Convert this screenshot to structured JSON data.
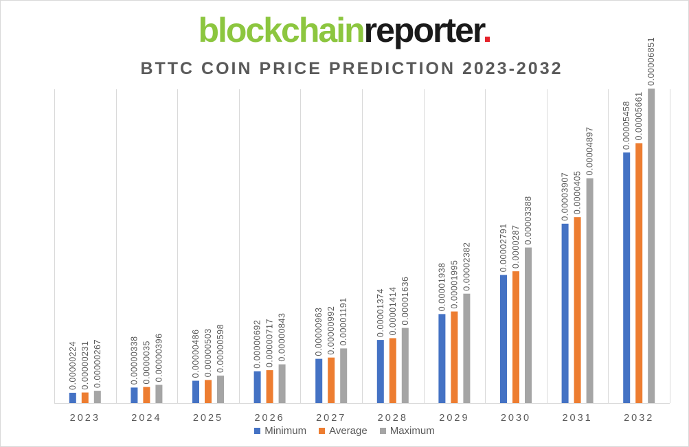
{
  "logo": {
    "part1": "blockchain",
    "part2": "reporter",
    "part3": "."
  },
  "chart_data": {
    "type": "bar",
    "title": "BTTC COIN PRICE PREDICTION 2023-2032",
    "xlabel": "",
    "ylabel": "",
    "categories": [
      "2023",
      "2024",
      "2025",
      "2026",
      "2027",
      "2028",
      "2029",
      "2030",
      "2031",
      "2032"
    ],
    "series": [
      {
        "name": "Minimum",
        "color": "#4472c4",
        "values": [
          2.24e-06,
          3.38e-06,
          4.86e-06,
          6.92e-06,
          9.63e-06,
          1.374e-05,
          1.938e-05,
          2.791e-05,
          3.907e-05,
          5.458e-05
        ],
        "labels": [
          "0.00000224",
          "0.00000338",
          "0.00000486",
          "0.00000692",
          "0.00000963",
          "0.00001374",
          "0.00001938",
          "0.00002791",
          "0.00003907",
          "0.00005458"
        ]
      },
      {
        "name": "Average",
        "color": "#ed7d31",
        "values": [
          2.31e-06,
          3.5e-06,
          5.03e-06,
          7.17e-06,
          9.92e-06,
          1.414e-05,
          1.995e-05,
          2.87e-05,
          4.05e-05,
          5.661e-05
        ],
        "labels": [
          "0.00000231",
          "0.0000035",
          "0.00000503",
          "0.00000717",
          "0.00000992",
          "0.00001414",
          "0.00001995",
          "0.0000287",
          "0.0000405",
          "0.00005661"
        ]
      },
      {
        "name": "Maximum",
        "color": "#a5a5a5",
        "values": [
          2.67e-06,
          3.96e-06,
          5.98e-06,
          8.43e-06,
          1.191e-05,
          1.636e-05,
          2.382e-05,
          3.388e-05,
          4.897e-05,
          6.851e-05
        ],
        "labels": [
          "0.00000267",
          "0.00000396",
          "0.00000598",
          "0.00000843",
          "0.00001191",
          "0.00001636",
          "0.00002382",
          "0.00003388",
          "0.00004897",
          "0.00006851"
        ]
      }
    ],
    "ylim": [
      0,
      7e-05
    ],
    "grid": "vertical",
    "legend": "bottom"
  }
}
